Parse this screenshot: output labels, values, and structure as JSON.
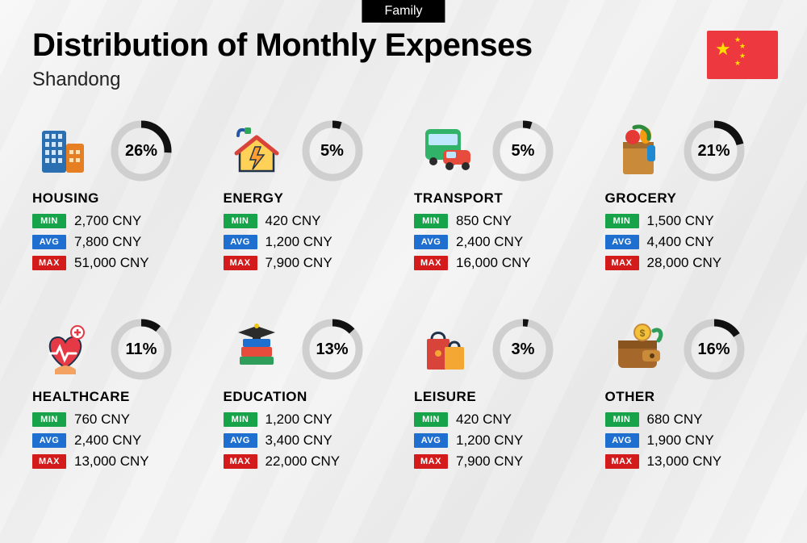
{
  "badge": "Family",
  "title": "Distribution of Monthly Expenses",
  "subtitle": "Shandong",
  "flag": {
    "bg": "#ee3840",
    "star": "#ffde00"
  },
  "currency": "CNY",
  "donut": {
    "radius": 33,
    "stroke_width": 9,
    "track_color": "#cfcfcf",
    "progress_color": "#111111",
    "pct_fontsize": 20,
    "pct_fontweight": 900
  },
  "tags": {
    "min": {
      "label": "MIN",
      "bg": "#17a349"
    },
    "avg": {
      "label": "AVG",
      "bg": "#1f6fd1"
    },
    "max": {
      "label": "MAX",
      "bg": "#d31b1b"
    }
  },
  "typography": {
    "title_fontsize": 40,
    "title_fontweight": 900,
    "subtitle_fontsize": 24,
    "category_fontsize": 17,
    "category_fontweight": 800,
    "value_fontsize": 17
  },
  "layout": {
    "columns": 4,
    "rows": 2,
    "col_gap": 22,
    "row_gap": 58
  },
  "categories": [
    {
      "key": "housing",
      "name": "HOUSING",
      "pct": 26,
      "min": "2,700",
      "avg": "7,800",
      "max": "51,000",
      "icon": "buildings-icon"
    },
    {
      "key": "energy",
      "name": "ENERGY",
      "pct": 5,
      "min": "420",
      "avg": "1,200",
      "max": "7,900",
      "icon": "house-energy-icon"
    },
    {
      "key": "transport",
      "name": "TRANSPORT",
      "pct": 5,
      "min": "850",
      "avg": "2,400",
      "max": "16,000",
      "icon": "bus-car-icon"
    },
    {
      "key": "grocery",
      "name": "GROCERY",
      "pct": 21,
      "min": "1,500",
      "avg": "4,400",
      "max": "28,000",
      "icon": "grocery-bag-icon"
    },
    {
      "key": "healthcare",
      "name": "HEALTHCARE",
      "pct": 11,
      "min": "760",
      "avg": "2,400",
      "max": "13,000",
      "icon": "heart-care-icon"
    },
    {
      "key": "education",
      "name": "EDUCATION",
      "pct": 13,
      "min": "1,200",
      "avg": "3,400",
      "max": "22,000",
      "icon": "graduation-books-icon"
    },
    {
      "key": "leisure",
      "name": "LEISURE",
      "pct": 3,
      "min": "420",
      "avg": "1,200",
      "max": "7,900",
      "icon": "shopping-bags-icon"
    },
    {
      "key": "other",
      "name": "OTHER",
      "pct": 16,
      "min": "680",
      "avg": "1,900",
      "max": "13,000",
      "icon": "wallet-icon"
    }
  ]
}
